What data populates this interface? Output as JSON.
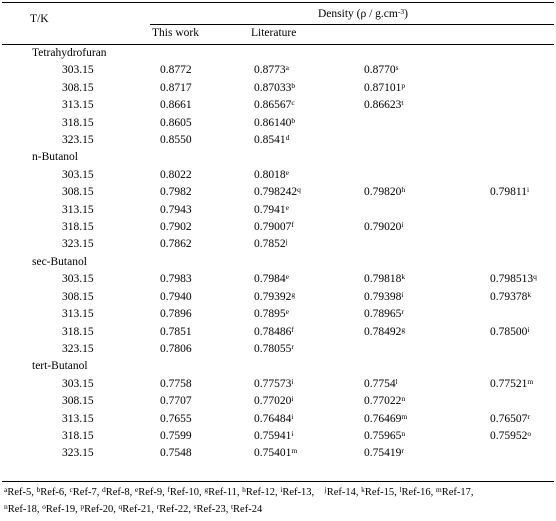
{
  "header": {
    "temp_label": "T/K",
    "density_label": "Density (ρ / g.cm",
    "density_unit_sup": "-3",
    "density_label_end": ")",
    "this_work": "This work",
    "literature": "Literature"
  },
  "groups": [
    {
      "name": "Tetrahydrofuran",
      "rows": [
        {
          "t": "303.15",
          "this": "0.8772",
          "lit": [
            {
              "v": "0.8773",
              "r": "a"
            },
            {
              "v": "0.8770",
              "r": "s"
            },
            null
          ]
        },
        {
          "t": "308.15",
          "this": "0.8717",
          "lit": [
            {
              "v": "0.87033",
              "r": "b"
            },
            {
              "v": "0.87101",
              "r": "p"
            },
            null
          ]
        },
        {
          "t": "313.15",
          "this": "0.8661",
          "lit": [
            {
              "v": "0.86567",
              "r": "c"
            },
            {
              "v": "0.86623",
              "r": "t"
            },
            null
          ]
        },
        {
          "t": "318.15",
          "this": "0.8605",
          "lit": [
            {
              "v": "0.86140",
              "r": "b"
            },
            null,
            null
          ]
        },
        {
          "t": "323.15",
          "this": "0.8550",
          "lit": [
            {
              "v": "0.8541",
              "r": "d"
            },
            null,
            null
          ]
        }
      ]
    },
    {
      "name": "n-Butanol",
      "rows": [
        {
          "t": "303.15",
          "this": "0.8022",
          "lit": [
            {
              "v": "0.8018",
              "r": "e"
            },
            null,
            null
          ]
        },
        {
          "t": "308.15",
          "this": "0.7982",
          "lit": [
            {
              "v": "0.798242",
              "r": "q"
            },
            {
              "v": "0.79820",
              "r": "h"
            },
            {
              "v": "0.79811",
              "r": "i"
            }
          ]
        },
        {
          "t": "313.15",
          "this": "0.7943",
          "lit": [
            {
              "v": "0.7941",
              "r": "e"
            },
            null,
            null
          ]
        },
        {
          "t": "318.15",
          "this": "0.7902",
          "lit": [
            {
              "v": "0.79007",
              "r": "f"
            },
            {
              "v": "0.79020",
              "r": "i"
            },
            null
          ]
        },
        {
          "t": "323.15",
          "this": "0.7862",
          "lit": [
            {
              "v": "0.7852",
              "r": "j"
            },
            null,
            null
          ]
        }
      ]
    },
    {
      "name": "sec-Butanol",
      "rows": [
        {
          "t": "303.15",
          "this": "0.7983",
          "lit": [
            {
              "v": "0.7984",
              "r": "e"
            },
            {
              "v": "0.79818",
              "r": "k"
            },
            {
              "v": "0.798513",
              "r": "q"
            }
          ]
        },
        {
          "t": "308.15",
          "this": "0.7940",
          "lit": [
            {
              "v": "0.79392",
              "r": "g"
            },
            {
              "v": "0.79398",
              "r": "i"
            },
            {
              "v": "0.79378",
              "r": "k"
            }
          ]
        },
        {
          "t": "313.15",
          "this": "0.7896",
          "lit": [
            {
              "v": "0.7895",
              "r": "e"
            },
            {
              "v": "0.78965",
              "r": "r"
            },
            null
          ]
        },
        {
          "t": "318.15",
          "this": "0.7851",
          "lit": [
            {
              "v": "0.78486",
              "r": "f"
            },
            {
              "v": "0.78492",
              "r": "g"
            },
            {
              "v": "0.78500",
              "r": "i"
            }
          ]
        },
        {
          "t": "323.15",
          "this": "0.7806",
          "lit": [
            {
              "v": "0.78055",
              "r": "r"
            },
            null,
            null
          ]
        }
      ]
    },
    {
      "name": "tert-Butanol",
      "rows": [
        {
          "t": "303.15",
          "this": "0.7758",
          "lit": [
            {
              "v": "0.77573",
              "r": "i"
            },
            {
              "v": "0.7754",
              "r": "l"
            },
            {
              "v": "0.77521",
              "r": "m"
            }
          ]
        },
        {
          "t": "308.15",
          "this": "0.7707",
          "lit": [
            {
              "v": "0.77020",
              "r": "i"
            },
            {
              "v": "0.77022",
              "r": "n"
            },
            null
          ]
        },
        {
          "t": "313.15",
          "this": "0.7655",
          "lit": [
            {
              "v": "0.76484",
              "r": "i"
            },
            {
              "v": "0.76469",
              "r": "m"
            },
            {
              "v": "0.76507",
              "r": "r"
            }
          ]
        },
        {
          "t": "318.15",
          "this": "0.7599",
          "lit": [
            {
              "v": "0.75941",
              "r": "i"
            },
            {
              "v": "0.75965",
              "r": "n"
            },
            {
              "v": "0.75952",
              "r": "o"
            }
          ]
        },
        {
          "t": "323.15",
          "this": "0.7548",
          "lit": [
            {
              "v": "0.75401",
              "r": "m"
            },
            {
              "v": "0.75419",
              "r": "r"
            },
            null
          ]
        }
      ]
    }
  ],
  "footnotes": {
    "line1": [
      {
        "r": "a",
        "t": "Ref-5, "
      },
      {
        "r": "b",
        "t": "Ref-6, "
      },
      {
        "r": "c",
        "t": "Ref-7, "
      },
      {
        "r": "d",
        "t": "Ref-8, "
      },
      {
        "r": "e",
        "t": "Ref-9, "
      },
      {
        "r": "f",
        "t": "Ref-10, "
      },
      {
        "r": "g",
        "t": "Ref-11, "
      },
      {
        "r": "h",
        "t": "Ref-12, "
      },
      {
        "r": "i",
        "t": "Ref-13,    "
      },
      {
        "r": "j",
        "t": "Ref-14, "
      },
      {
        "r": "k",
        "t": "Ref-15, "
      },
      {
        "r": "l",
        "t": "Ref-16, "
      },
      {
        "r": "m",
        "t": "Ref-17, "
      }
    ],
    "line2": [
      {
        "r": "n",
        "t": "Ref-18, "
      },
      {
        "r": "o",
        "t": "Ref-19, "
      },
      {
        "r": "p",
        "t": "Ref-20, "
      },
      {
        "r": "q",
        "t": "Ref-21, "
      },
      {
        "r": "r",
        "t": "Ref-22, "
      },
      {
        "r": "s",
        "t": "Ref-23, "
      },
      {
        "r": "t",
        "t": "Ref-24"
      }
    ]
  }
}
